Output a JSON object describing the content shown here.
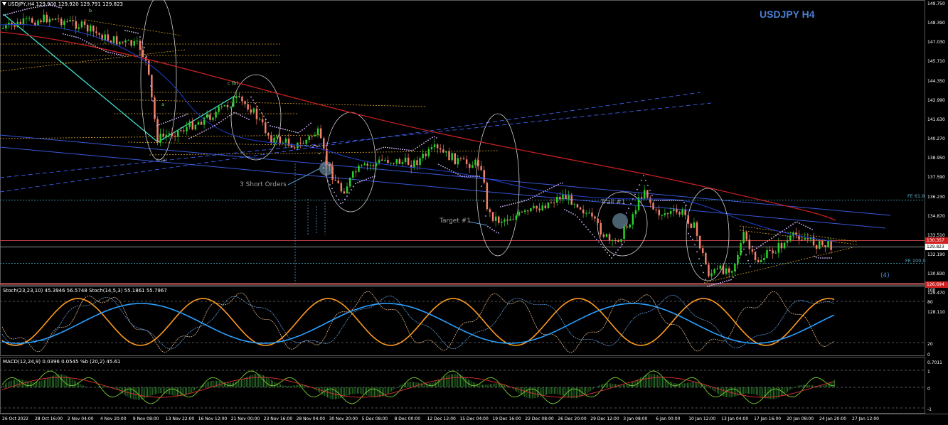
{
  "header": {
    "info": "USDJPY,H4  129.900  129.920  129.791  129.823",
    "title": "USDJPY H4"
  },
  "price_axis": {
    "ticks": [
      "149.750",
      "148.390",
      "147.030",
      "145.710",
      "144.350",
      "142.990",
      "141.630",
      "140.270",
      "138.950",
      "137.590",
      "136.230",
      "134.870",
      "133.510",
      "132.190",
      "130.830",
      "129.470",
      "128.110"
    ],
    "current_price": "129.823",
    "red_level": "130.357",
    "bottom_level": "126.694"
  },
  "annotations": {
    "three_short_orders": "3 Short Orders",
    "target1": "Target #1",
    "trail1": "Trail #1",
    "fe_618": "FE 61.8",
    "fe_100": "FE 100.0",
    "wave_4": "(4)",
    "wave_c_b": "c (b)",
    "wave_c_a": "c (a)",
    "wave_b": "b",
    "wave_a": "a",
    "wave_b2": "b"
  },
  "stoch": {
    "label": "Stoch(23,23,10) 45.3946 56.5748   Stoch(14,5,3) 55.1861 55.7967",
    "ticks": [
      "100",
      "80",
      "20",
      "0"
    ]
  },
  "macd": {
    "label": "MACD(12,24,9) 0.0396 0.0545   %b (20,2) 45.61",
    "ticks": [
      "0.7011",
      "1",
      "0",
      "-1"
    ]
  },
  "time_axis": [
    "26 Oct 2022",
    "28 Oct 16:00",
    "2 Nov 04:00",
    "4 Nov 20:00",
    "9 Nov 08:00",
    "13 Nov 22:00",
    "16 Nov 12:00",
    "21 Nov 00:00",
    "23 Nov 16:00",
    "28 Nov 04:00",
    "30 Nov 20:00",
    "5 Dec 08:00",
    "8 Dec 00:00",
    "12 Dec 12:00",
    "15 Dec 04:00",
    "19 Dec 16:00",
    "22 Dec 08:00",
    "26 Dec 20:00",
    "29 Dec 12:00",
    "3 Jan 08:00",
    "6 Jan 00:00",
    "10 Jan 12:00",
    "13 Jan 04:00",
    "17 Jan 16:00",
    "20 Jan 08:00",
    "24 Jan 20:00",
    "27 Jan 12:00"
  ],
  "colors": {
    "up": "#2bd12b",
    "down": "#f2806b",
    "ma_red": "#c82020",
    "ma_blue": "#2040d0",
    "dotted": "#d6b6ff",
    "fib": "#d6a020",
    "stoch_orange": "#ff9a20",
    "stoch_blue": "#2aa0ff",
    "macd_line": "#7ad030",
    "macd_signal": "#e03030"
  }
}
